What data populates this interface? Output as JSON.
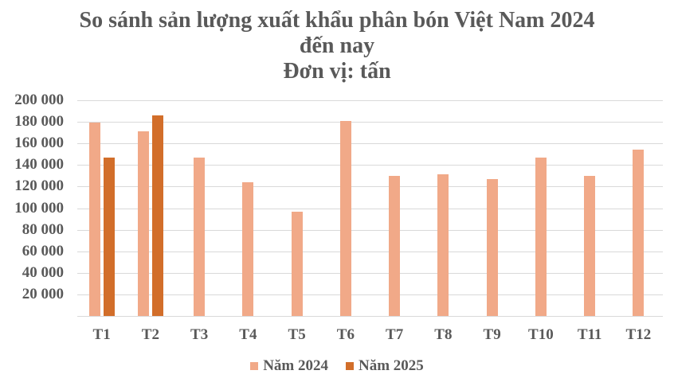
{
  "title": {
    "line1": "So sánh sản lượng xuất khẩu phân bón Việt Nam 2024",
    "line2": "đến nay",
    "line3": "Đơn vị: tấn"
  },
  "colors": {
    "series_2024": "#f1a988",
    "series_2025": "#d26e2a",
    "grid": "#d9d9d9",
    "text": "#595959"
  },
  "y_ticks": [
    "200 000",
    "180 000",
    "160 000",
    "140 000",
    "120 000",
    "100 000",
    "80 000",
    "60 000",
    "40 000",
    "20 000"
  ],
  "legend": {
    "items": [
      {
        "label": "Năm 2024"
      },
      {
        "label": "Năm 2025"
      }
    ]
  },
  "chart_data": {
    "type": "bar",
    "title": "So sánh sản lượng xuất khẩu phân bón Việt Nam 2024 đến nay — Đơn vị: tấn",
    "xlabel": "",
    "ylabel": "",
    "ylim": [
      0,
      200000
    ],
    "grid": true,
    "legend_position": "bottom",
    "categories": [
      "T1",
      "T2",
      "T3",
      "T4",
      "T5",
      "T6",
      "T7",
      "T8",
      "T9",
      "T10",
      "T11",
      "T12"
    ],
    "series": [
      {
        "name": "Năm 2024",
        "color": "#f1a988",
        "values": [
          179500,
          171000,
          147000,
          124000,
          97000,
          181000,
          130000,
          131500,
          127000,
          147000,
          130000,
          154500
        ]
      },
      {
        "name": "Năm 2025",
        "color": "#d26e2a",
        "values": [
          147000,
          186000,
          null,
          null,
          null,
          null,
          null,
          null,
          null,
          null,
          null,
          null
        ]
      }
    ]
  }
}
